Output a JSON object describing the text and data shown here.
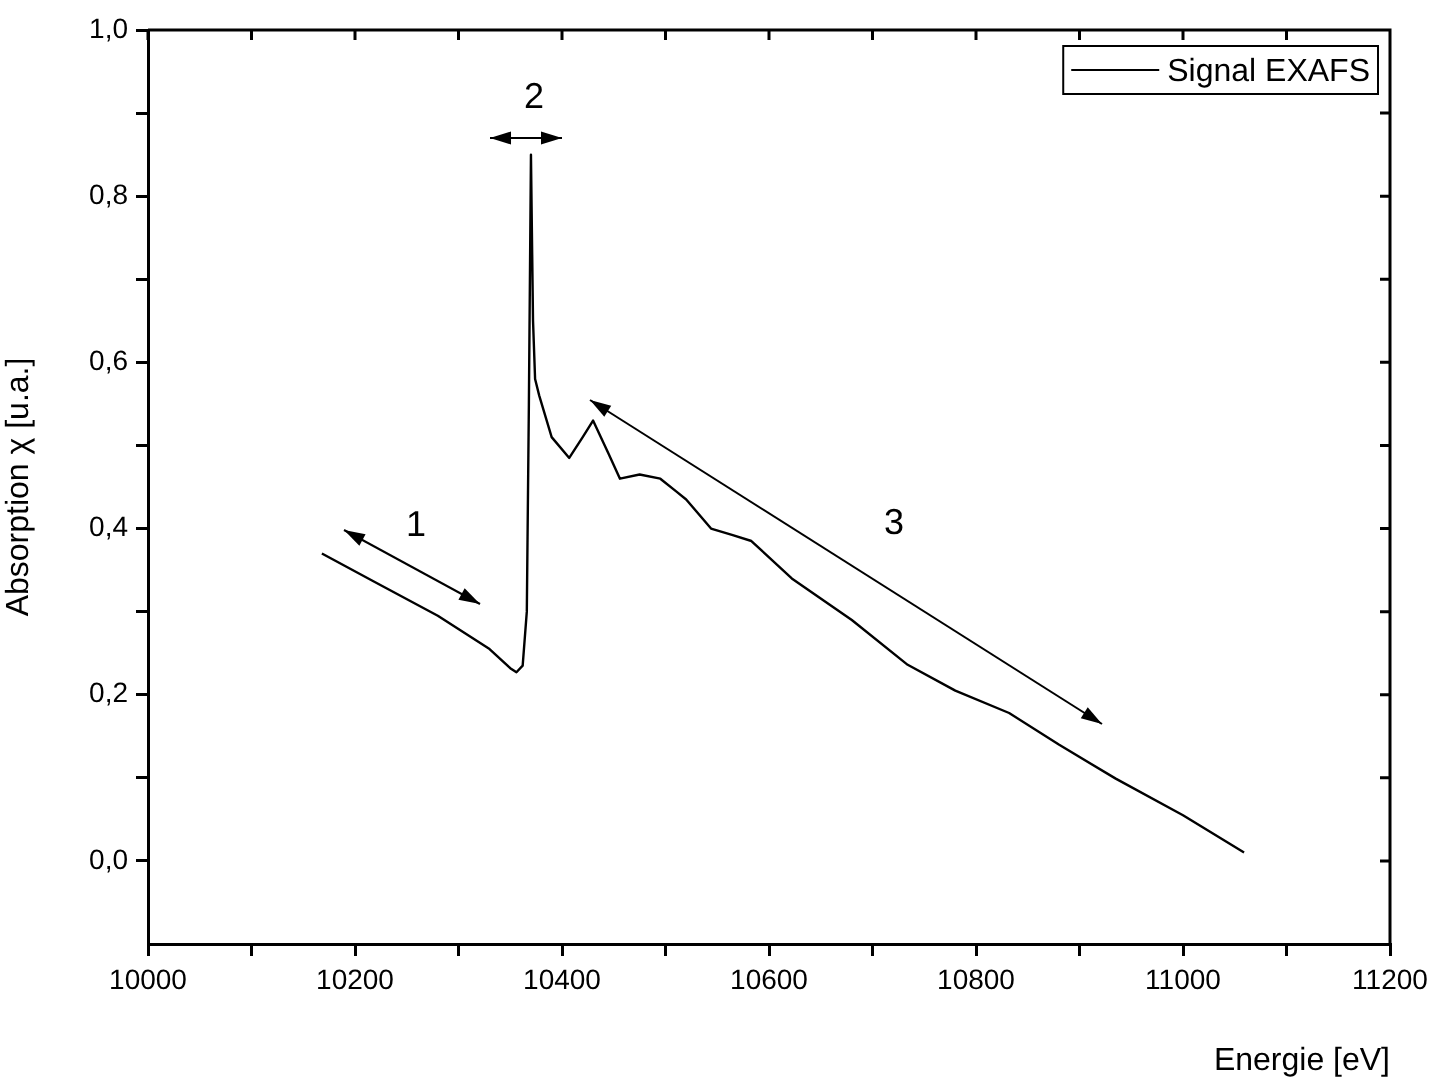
{
  "chart_data": {
    "type": "line",
    "xlabel": "Energie [eV]",
    "ylabel": "Absorption χ [u.a.]",
    "xlim": [
      10000,
      11200
    ],
    "ylim": [
      -0.1,
      1.0
    ],
    "xticks": [
      10000,
      {
        "value": 10100,
        "label": null
      },
      10200,
      {
        "value": 10300,
        "label": null
      },
      10400,
      {
        "value": 10500,
        "label": null
      },
      10600,
      {
        "value": 10700,
        "label": null
      },
      10800,
      {
        "value": 10900,
        "label": null
      },
      11000,
      {
        "value": 11100,
        "label": null
      },
      11200
    ],
    "yticks": [
      {
        "value": 0,
        "label": "0,0"
      },
      {
        "value": 0.1,
        "label": null
      },
      {
        "value": 0.2,
        "label": "0,2"
      },
      {
        "value": 0.3,
        "label": null
      },
      {
        "value": 0.4,
        "label": "0,4"
      },
      {
        "value": 0.5,
        "label": null
      },
      {
        "value": 0.6,
        "label": "0,6"
      },
      {
        "value": 0.7,
        "label": null
      },
      {
        "value": 0.8,
        "label": "0,8"
      },
      {
        "value": 0.9,
        "label": null
      },
      {
        "value": 1.0,
        "label": "1,0"
      }
    ],
    "grid": false,
    "legend": "top right",
    "marker": "none",
    "line_style": "solid",
    "annotations": [
      "1",
      "2",
      "3"
    ],
    "series": [
      {
        "name": "Signal EXAFS",
        "color": "#000000",
        "x": [
          10168,
          10220,
          10280,
          10330,
          10350,
          10356,
          10362,
          10366,
          10368,
          10370,
          10372,
          10374,
          10378,
          10390,
          10407,
          10420,
          10430,
          10445,
          10456,
          10475,
          10495,
          10510,
          10520,
          10544,
          10565,
          10583,
          10622,
          10680,
          10734,
          10780,
          10832,
          10880,
          10935,
          11000,
          11059
        ],
        "values": [
          0.37,
          0.335,
          0.295,
          0.255,
          0.232,
          0.227,
          0.235,
          0.3,
          0.55,
          0.85,
          0.65,
          0.58,
          0.56,
          0.51,
          0.485,
          0.51,
          0.53,
          0.49,
          0.46,
          0.465,
          0.46,
          0.445,
          0.435,
          0.4,
          0.392,
          0.385,
          0.34,
          0.29,
          0.236,
          0.205,
          0.178,
          0.14,
          0.099,
          0.055,
          0.01
        ]
      }
    ]
  }
}
